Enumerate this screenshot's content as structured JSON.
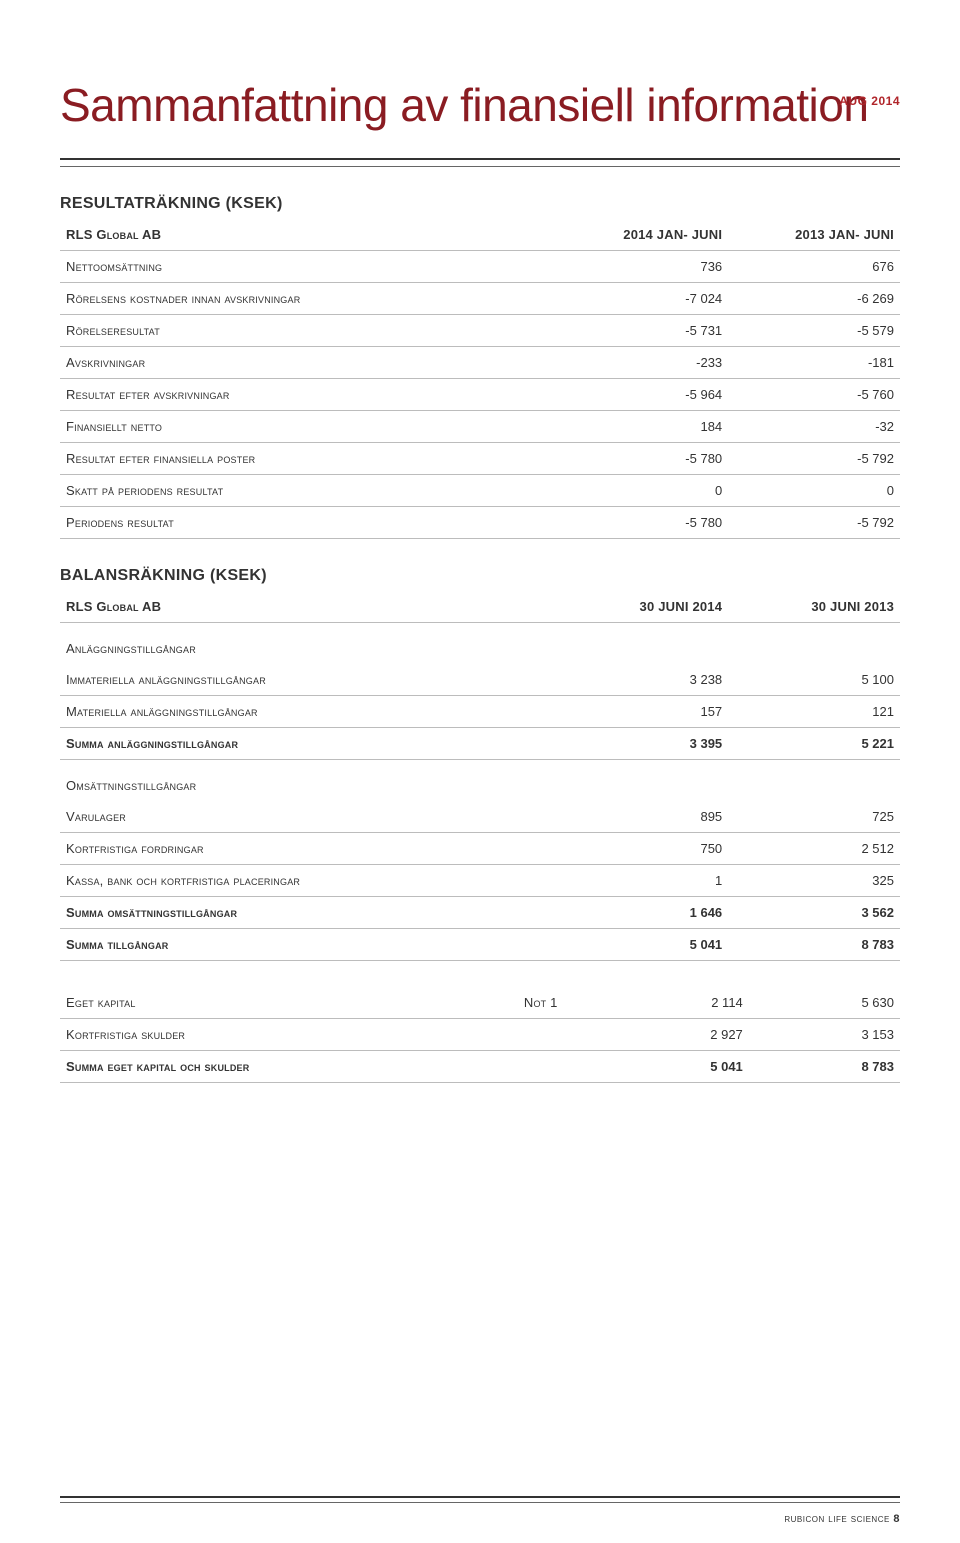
{
  "header": {
    "date_label": "AUG 2014",
    "date_color": "#b0252a",
    "title": "Sammanfattning av finansiell information",
    "title_color": "#8a1c22"
  },
  "table1": {
    "heading": "RESULTATRÄKNING (KSEK)",
    "header": {
      "c0": "RLS Global AB",
      "c1": "2014 JAN- JUNI",
      "c2": "2013 JAN- JUNI"
    },
    "rows": [
      {
        "label": "Nettoomsättning",
        "v1": "736",
        "v2": "676"
      },
      {
        "label": "Rörelsens kostnader innan avskrivningar",
        "v1": "-7 024",
        "v2": "-6 269"
      },
      {
        "label": "Rörelseresultat",
        "v1": "-5 731",
        "v2": "-5 579"
      },
      {
        "label": "Avskrivningar",
        "v1": "-233",
        "v2": "-181"
      },
      {
        "label": "Resultat efter avskrivningar",
        "v1": "-5 964",
        "v2": "-5 760"
      },
      {
        "label": "Finansiellt netto",
        "v1": "184",
        "v2": "-32"
      },
      {
        "label": "Resultat efter finansiella poster",
        "v1": "-5 780",
        "v2": "-5 792"
      },
      {
        "label": "Skatt på periodens resultat",
        "v1": "0",
        "v2": "0"
      },
      {
        "label": "Periodens resultat",
        "v1": "-5 780",
        "v2": "-5 792"
      }
    ]
  },
  "table2": {
    "heading": "BALANSRÄKNING (KSEK)",
    "header": {
      "c0": "RLS Global AB",
      "c1": "30 JUNI 2014",
      "c2": "30 JUNI 2013"
    },
    "section1": "Anläggningstillgångar",
    "rows1": [
      {
        "label": "Immateriella anläggningstillgångar",
        "v1": "3 238",
        "v2": "5 100"
      },
      {
        "label": "Materiella anläggningstillgångar",
        "v1": "157",
        "v2": "121"
      },
      {
        "label": "Summa anläggningstillgångar",
        "v1": "3 395",
        "v2": "5 221",
        "bold": true
      }
    ],
    "section2": "Omsättningstillgångar",
    "rows2": [
      {
        "label": "Varulager",
        "v1": "895",
        "v2": "725"
      },
      {
        "label": "Kortfristiga fordringar",
        "v1": "750",
        "v2": "2 512"
      },
      {
        "label": "Kassa, bank och kortfristiga placeringar",
        "v1": "1",
        "v2": "325"
      },
      {
        "label": "Summa omsättningstillgångar",
        "v1": "1 646",
        "v2": "3 562",
        "bold": true
      },
      {
        "label": "Summa tillgångar",
        "v1": "5 041",
        "v2": "8 783",
        "bold": true
      }
    ],
    "rows3": [
      {
        "label": "Eget kapital",
        "note": "Not 1",
        "v1": "2 114",
        "v2": "5 630"
      },
      {
        "label": "Kortfristiga skulder",
        "note": "",
        "v1": "2 927",
        "v2": "3 153"
      },
      {
        "label": "Summa eget kapital och skulder",
        "note": "",
        "v1": "5 041",
        "v2": "8 783",
        "bold": true
      }
    ]
  },
  "footer": {
    "brand": "rubicon life science",
    "page": "8"
  },
  "style": {
    "rule_heavy_color": "#333333",
    "rule_thin_color": "#666666",
    "row_border_color": "#bcbcbc",
    "body_font_size": 13,
    "title_font_size": 46
  }
}
